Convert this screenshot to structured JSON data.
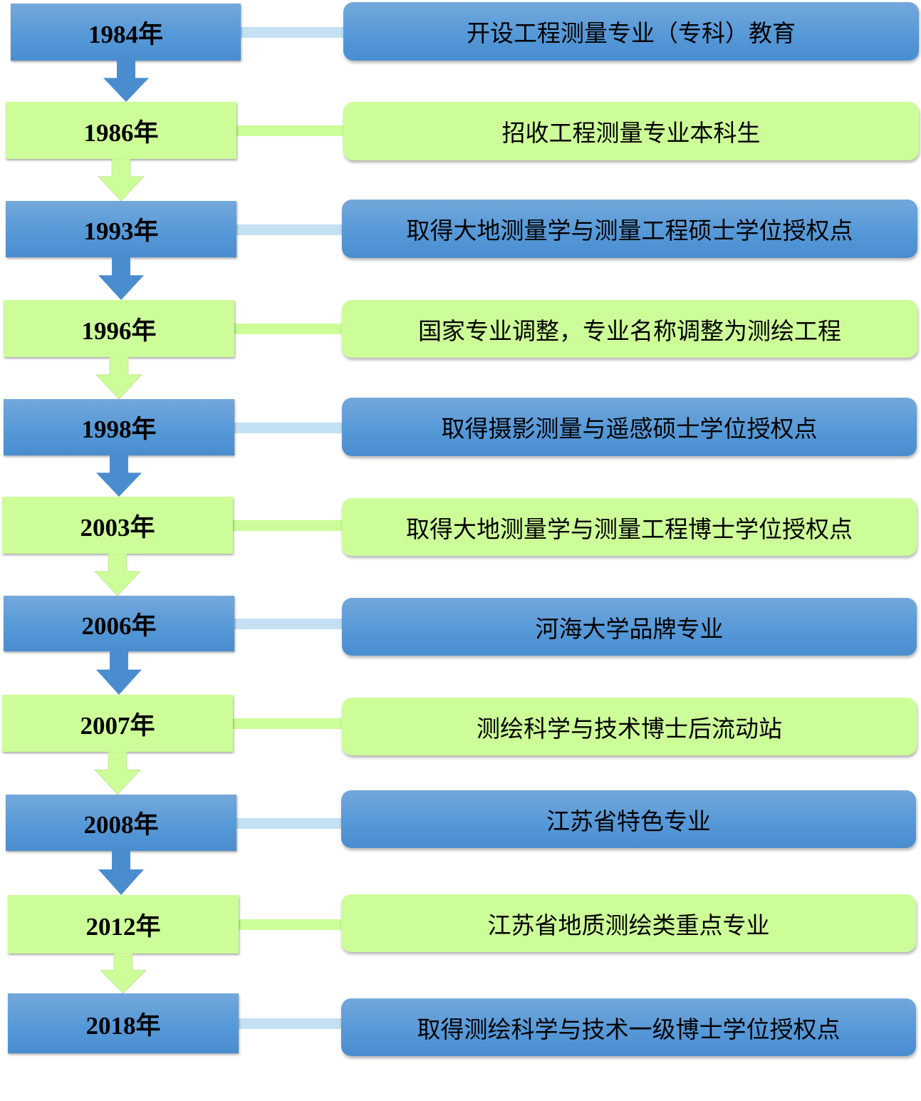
{
  "colors": {
    "blue": "#5699d8",
    "green": "#cdfd98",
    "blue_connector": "#c4e0f3"
  },
  "timeline": [
    {
      "year": "1984年",
      "event": "开设工程测量专业（专科）教育",
      "color": "blue"
    },
    {
      "year": "1986年",
      "event": "招收工程测量专业本科生",
      "color": "green"
    },
    {
      "year": "1993年",
      "event": "取得大地测量学与测量工程硕士学位授权点",
      "color": "blue"
    },
    {
      "year": "1996年",
      "event": "国家专业调整，专业名称调整为测绘工程",
      "color": "green"
    },
    {
      "year": "1998年",
      "event": "取得摄影测量与遥感硕士学位授权点",
      "color": "blue"
    },
    {
      "year": "2003年",
      "event": "取得大地测量学与测量工程博士学位授权点",
      "color": "green"
    },
    {
      "year": "2006年",
      "event": "河海大学品牌专业",
      "color": "blue"
    },
    {
      "year": "2007年",
      "event": "测绘科学与技术博士后流动站",
      "color": "green"
    },
    {
      "year": "2008年",
      "event": "江苏省特色专业",
      "color": "blue"
    },
    {
      "year": "2012年",
      "event": "江苏省地质测绘类重点专业",
      "color": "green"
    },
    {
      "year": "2018年",
      "event": "取得测绘科学与技术一级博士学位授权点",
      "color": "blue"
    }
  ]
}
